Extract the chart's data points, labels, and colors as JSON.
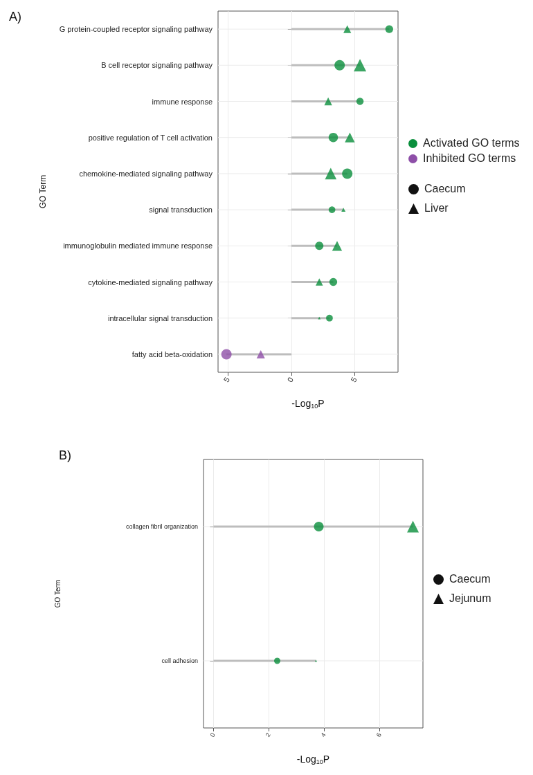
{
  "chart_data": [
    {
      "type": "lollipop",
      "orientation": "horizontal",
      "title": "A)",
      "xlabel": "-Log$_{10}$P",
      "ylabel": "GO Term",
      "annotations": [
        "Activated GO terms",
        "Inhibited GO terms"
      ],
      "categories": [
        "G protein-coupled receptor signaling pathway",
        "B cell receptor signaling pathway",
        "immune response",
        "positive regulation of T cell activation",
        "chemokine-mediated signaling pathway",
        "signal transduction",
        "immunoglobulin mediated immune response",
        "cytokine-mediated signaling pathway",
        "intracellular signal transduction",
        "fatty acid beta-oxidation"
      ],
      "xlim": [
        -5.76,
        8.39
      ],
      "xticks": [
        {
          "value": -5,
          "label": "5"
        },
        0,
        5
      ],
      "grid": true,
      "legend": "right",
      "series": [
        {
          "name": "Caecum",
          "marker": "circle",
          "color": "#0a8f3c",
          "colors": [
            "#0a8f3c",
            "#0a8f3c",
            "#0a8f3c",
            "#0a8f3c",
            "#0a8f3c",
            "#0a8f3c",
            "#0a8f3c",
            "#0a8f3c",
            "#0a8f3c",
            "#8e4fa8"
          ],
          "values": [
            7.7,
            3.8,
            5.4,
            3.3,
            4.4,
            3.2,
            2.2,
            3.3,
            3.0,
            -5.1
          ],
          "sizes": [
            0.57,
            1.0,
            0.49,
            0.81,
            1.0,
            0.42,
            0.64,
            0.57,
            0.42,
            1.0
          ]
        },
        {
          "name": "Liver",
          "marker": "triangle",
          "color": "#0a8f3c",
          "colors": [
            "#0a8f3c",
            "#0a8f3c",
            "#0a8f3c",
            "#0a8f3c",
            "#0a8f3c",
            "#0a8f3c",
            "#0a8f3c",
            "#0a8f3c",
            "#0a8f3c",
            "#8e4fa8"
          ],
          "values": [
            4.4,
            5.4,
            2.9,
            4.6,
            3.1,
            4.1,
            3.6,
            2.2,
            2.2,
            -2.4
          ],
          "sizes": [
            0.36,
            0.92,
            0.36,
            0.58,
            0.78,
            0.1,
            0.58,
            0.31,
            0.04,
            0.41
          ]
        }
      ]
    },
    {
      "type": "lollipop",
      "orientation": "horizontal",
      "title": "B)",
      "xlabel": "-Log$_{10}$P",
      "ylabel": "GO Term",
      "categories": [
        "collagen fibril organization",
        "cell adhesion"
      ],
      "xlim": [
        -0.36,
        7.56
      ],
      "xticks": [
        0,
        2,
        4,
        6
      ],
      "grid": true,
      "legend": "right",
      "series": [
        {
          "name": "Caecum",
          "marker": "circle",
          "color": "#0a8f3c",
          "values": [
            3.8,
            2.3
          ],
          "sizes": [
            1.0,
            0.41
          ]
        },
        {
          "name": "Jejunum",
          "marker": "triangle",
          "color": "#0a8f3c",
          "values": [
            7.2,
            3.7
          ],
          "sizes": [
            0.94,
            0.03
          ]
        }
      ]
    }
  ]
}
